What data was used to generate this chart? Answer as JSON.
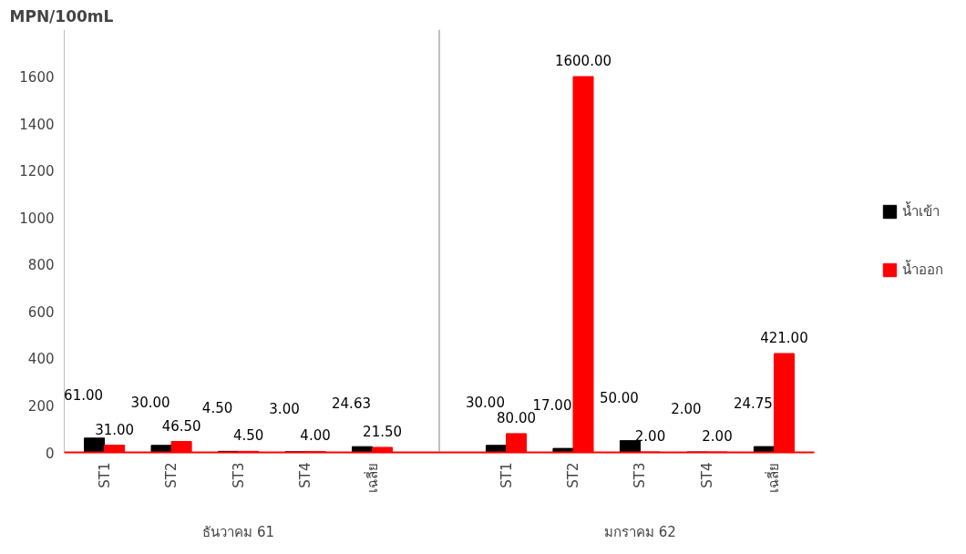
{
  "chart_data": {
    "type": "bar",
    "ylabel": "MPN/100mL",
    "categories": [
      "ST1",
      "ST2",
      "ST3",
      "ST4",
      "เฉลี่ย",
      null,
      "ST1",
      "ST2",
      "ST3",
      "ST4",
      "เฉลี่ย"
    ],
    "series": [
      {
        "name": "น้ำเข้า",
        "color": "#000000",
        "values": [
          61,
          30,
          4.5,
          3,
          24.63,
          null,
          30,
          17,
          50,
          2,
          24.75
        ],
        "value_labels": [
          "61.00",
          "30.00",
          "4.50",
          "3.00",
          "24.63",
          null,
          "30.00",
          "17.00",
          "50.00",
          "2.00",
          "24.75"
        ]
      },
      {
        "name": "น้ำออก",
        "color": "#ff0000",
        "values": [
          31,
          46.5,
          4.5,
          4,
          21.5,
          null,
          80,
          1600,
          2,
          2,
          421
        ],
        "value_labels": [
          "31.00",
          "46.50",
          "4.50",
          "4.00",
          "21.50",
          null,
          "80.00",
          "1600.00",
          "2.00",
          "2.00",
          "421.00"
        ]
      }
    ],
    "data_labels": true,
    "ylim": [
      0,
      1800
    ],
    "yticks": [
      0,
      200,
      400,
      600,
      800,
      1000,
      1200,
      1400,
      1600
    ],
    "legend": "right",
    "annotations": [
      "ธันวาคม 61",
      "มกราคม 62"
    ]
  }
}
